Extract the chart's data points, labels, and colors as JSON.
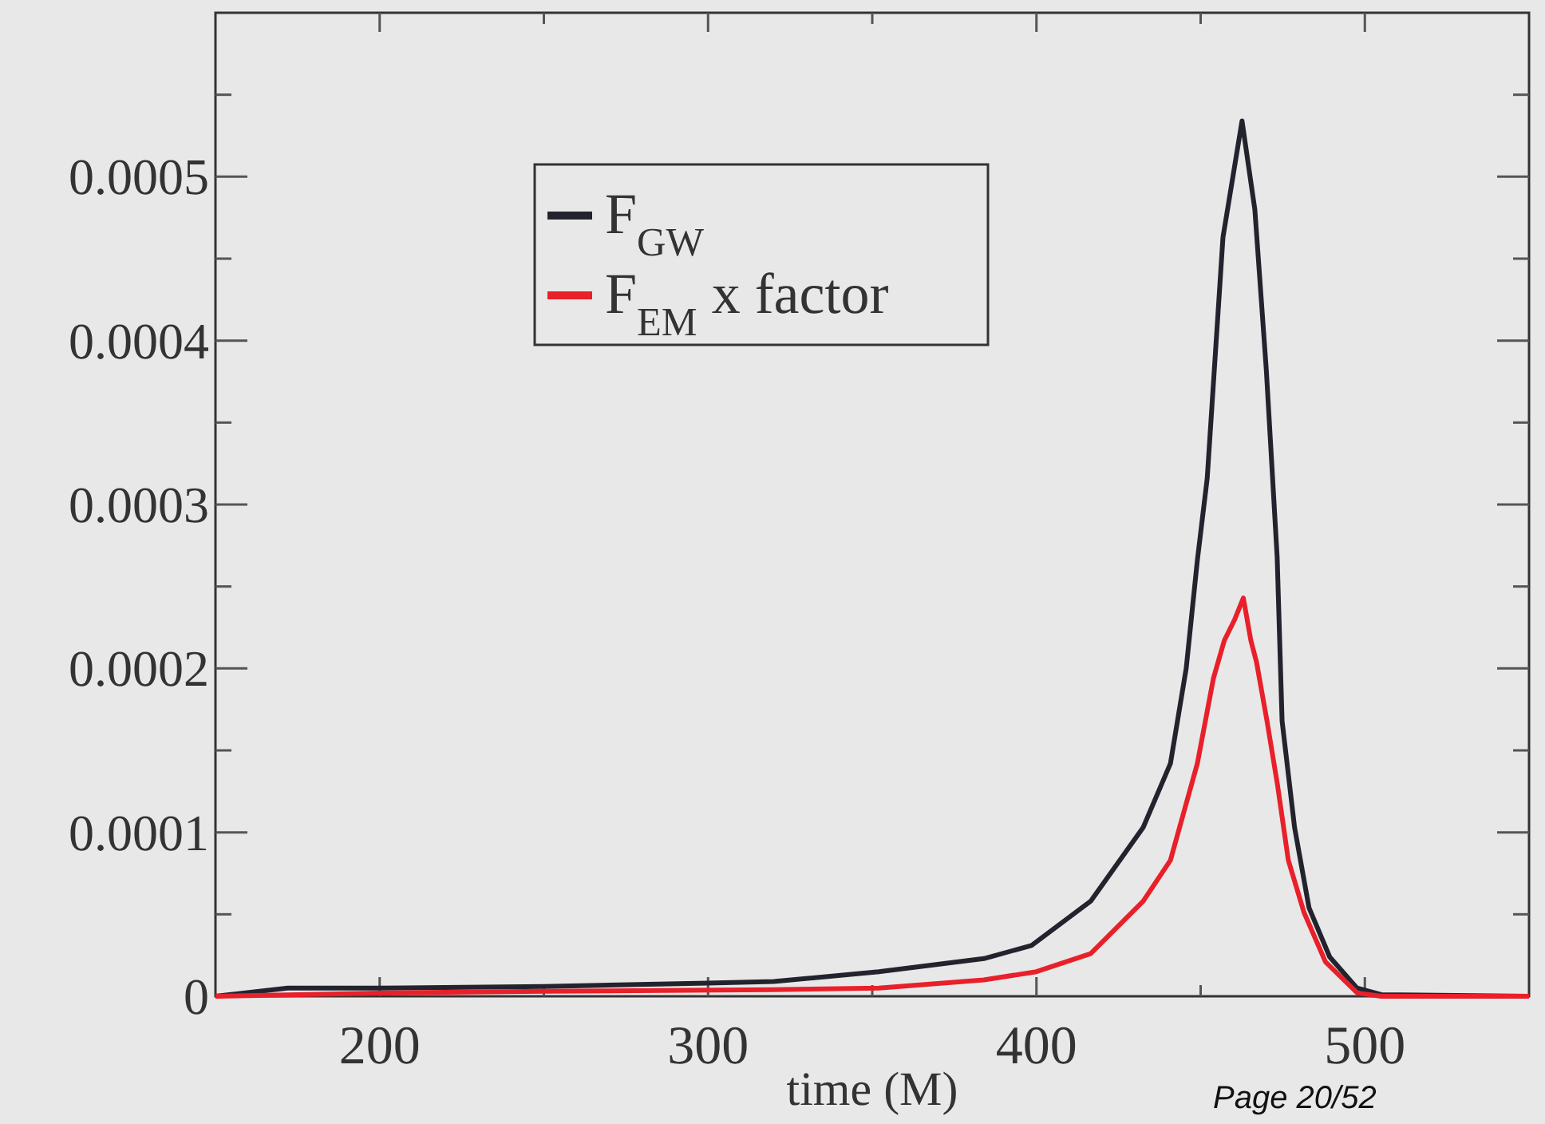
{
  "chart_data": {
    "type": "line",
    "xlabel": "time (M)",
    "xlim": [
      150,
      550
    ],
    "ylim": [
      0,
      0.0006
    ],
    "xticks": [
      200,
      {
        "value": 250,
        "label": null
      },
      300,
      {
        "value": 350,
        "label": null
      },
      400,
      {
        "value": 450,
        "label": null
      },
      500
    ],
    "yticks": [
      0,
      {
        "value": 5e-05,
        "label": null
      },
      0.0001,
      {
        "value": 0.00015,
        "label": null
      },
      0.0002,
      {
        "value": 0.00025,
        "label": null
      },
      0.0003,
      {
        "value": 0.00035,
        "label": null
      },
      0.0004,
      {
        "value": 0.00045,
        "label": null
      },
      0.0005,
      {
        "value": 0.00055,
        "label": null
      }
    ],
    "legend": "top left",
    "grid": false,
    "marker": "none",
    "line_style": "solid",
    "series": [
      {
        "name": "F$_{GW}$",
        "color": "#23232e",
        "x": [
          150,
          172,
          200,
          250,
          300,
          320,
          352,
          384,
          398.5,
          416.5,
          432.5,
          440.8,
          445.6,
          449,
          452,
          456.8,
          462.6,
          466.5,
          470,
          473.3,
          474.8,
          478.6,
          483,
          489.3,
          497.6,
          505,
          550
        ],
        "values": [
          0,
          5e-06,
          5e-06,
          6e-06,
          8e-06,
          9e-06,
          1.5e-05,
          2.3e-05,
          3.1e-05,
          5.8e-05,
          0.000103,
          0.000142,
          0.0002,
          0.000266,
          0.000316,
          0.000463,
          0.000534,
          0.00048,
          0.000382,
          0.000268,
          0.000168,
          0.000103,
          5.4e-05,
          2.4e-05,
          5e-06,
          1e-06,
          0
        ]
      },
      {
        "name": "F$_{EM}$ x factor",
        "color": "#e8202a",
        "x": [
          150,
          200,
          250,
          319,
          352,
          384,
          400,
          416.5,
          432.5,
          440.8,
          449,
          453.9,
          457.2,
          460.4,
          463,
          465.3,
          467,
          470.2,
          473.4,
          476.7,
          481.5,
          488,
          497.7,
          505,
          550
        ],
        "values": [
          0,
          2e-06,
          3e-06,
          4e-06,
          5e-06,
          1e-05,
          1.5e-05,
          2.6e-05,
          5.8e-05,
          8.3e-05,
          0.000142,
          0.000194,
          0.000217,
          0.00023,
          0.000243,
          0.000217,
          0.000204,
          0.000168,
          0.000129,
          8.3e-05,
          5.1e-05,
          2.1e-05,
          2e-06,
          0,
          0
        ]
      }
    ],
    "annotations": [
      "Page 20/52"
    ]
  }
}
